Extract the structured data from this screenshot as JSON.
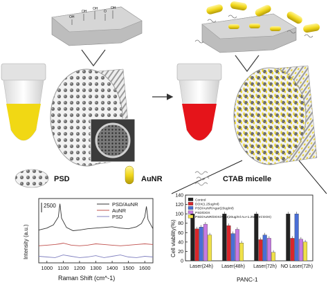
{
  "legend": {
    "psd": "PSD",
    "aunr": "AuNR",
    "ctab": "CTAB micelle"
  },
  "raman": {
    "scale_label": "2500",
    "ylabel": "Intensity (a.u.)",
    "xlabel": "Raman Shift (cm^-1)",
    "xticks": [
      "1000",
      "1100",
      "1200",
      "1300",
      "1400",
      "1500",
      "1600"
    ],
    "series_names": [
      "PSD/AuNR",
      "AuNR",
      "PSD"
    ],
    "colors": {
      "psd_aunr": "#333333",
      "aunr": "#c0504d",
      "psd": "#8080c0"
    }
  },
  "viability": {
    "ylabel": "Cell viability(%)",
    "xlabel": "PANC-1",
    "yticks": [
      "0",
      "20",
      "40",
      "60",
      "80",
      "100",
      "120",
      "140"
    ],
    "legend": [
      "Control",
      "DOX(1.25ug/ml)",
      "PSD/AuNR/Agar(20ug/ml)",
      "PSD/DOX",
      "PSD/AuNR/DOX/Agar(20ug/ml Au+1.25ug/ml DOX)"
    ],
    "categories": [
      "Laser(24h)",
      "Laser(48h)",
      "Laser(72h)",
      "NO Laser(72h)"
    ],
    "colors": [
      "#222222",
      "#d9262b",
      "#4a6fd6",
      "#c77be3",
      "#f0e14a"
    ]
  },
  "chart_data": [
    {
      "type": "line",
      "title": "",
      "xlabel": "Raman Shift (cm^-1)",
      "ylabel": "Intensity (a.u.)",
      "xlim": [
        950,
        1650
      ],
      "series": [
        {
          "name": "PSD/AuNR",
          "x": [
            950,
            1000,
            1040,
            1070,
            1080,
            1090,
            1120,
            1160,
            1200,
            1250,
            1300,
            1350,
            1400,
            1450,
            1500,
            1550,
            1580,
            1600,
            1610,
            1620,
            1650
          ],
          "y": [
            3200,
            3350,
            3600,
            4200,
            5200,
            4100,
            3400,
            3150,
            3200,
            3300,
            3350,
            3400,
            3450,
            3350,
            3300,
            3450,
            3700,
            4200,
            5000,
            4000,
            3300
          ]
        },
        {
          "name": "AuNR",
          "x": [
            950,
            1000,
            1050,
            1080,
            1100,
            1150,
            1200,
            1250,
            1300,
            1350,
            1400,
            1450,
            1500,
            1550,
            1600,
            1650
          ],
          "y": [
            2000,
            2050,
            2100,
            2150,
            2200,
            2050,
            2000,
            2050,
            2150,
            2100,
            2050,
            2000,
            2050,
            2100,
            2150,
            2100
          ]
        },
        {
          "name": "PSD",
          "x": [
            950,
            1000,
            1050,
            1100,
            1150,
            1200,
            1250,
            1300,
            1350,
            1400,
            1450,
            1500,
            1550,
            1600,
            1650
          ],
          "y": [
            1200,
            1150,
            1100,
            1300,
            1200,
            1100,
            1150,
            1250,
            1100,
            1200,
            1300,
            1150,
            1100,
            1200,
            1150
          ]
        }
      ]
    },
    {
      "type": "bar",
      "title": "",
      "xlabel": "PANC-1",
      "ylabel": "Cell viability(%)",
      "ylim": [
        0,
        140
      ],
      "categories": [
        "Laser(24h)",
        "Laser(48h)",
        "Laser(72h)",
        "NO Laser(72h)"
      ],
      "series": [
        {
          "name": "Control",
          "values": [
            100,
            100,
            100,
            100
          ]
        },
        {
          "name": "DOX(1.25ug/ml)",
          "values": [
            68,
            75,
            45,
            48
          ]
        },
        {
          "name": "PSD/AuNR/Agar(20ug/ml)",
          "values": [
            72,
            58,
            55,
            100
          ]
        },
        {
          "name": "PSD/DOX",
          "values": [
            78,
            67,
            48,
            46
          ]
        },
        {
          "name": "PSD/AuNR/DOX/Agar(20ug/ml Au+1.25ug/ml DOX)",
          "values": [
            55,
            38,
            18,
            40
          ]
        }
      ]
    }
  ]
}
